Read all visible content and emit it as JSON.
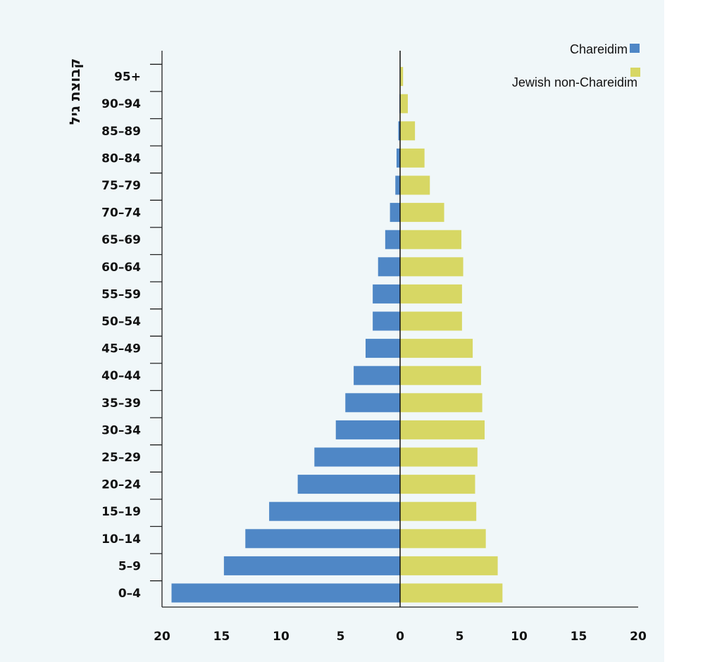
{
  "chart_data": {
    "type": "bar",
    "orientation": "horizontal-population-pyramid",
    "ylabel": "קבוצת גיל",
    "categories": [
      "0–4",
      "5–9",
      "10–14",
      "15–19",
      "20–24",
      "25–29",
      "30–34",
      "35–39",
      "40–44",
      "45–49",
      "50–54",
      "55–59",
      "60–64",
      "65–69",
      "70–74",
      "75–79",
      "80–84",
      "85–89",
      "90–94",
      "95+"
    ],
    "series": [
      {
        "name": "Chareidim",
        "color": "#4f87c6",
        "side": "left",
        "values": [
          19.2,
          14.8,
          13.0,
          11.0,
          8.6,
          7.2,
          5.4,
          4.6,
          3.9,
          2.9,
          2.3,
          2.3,
          1.85,
          1.25,
          0.85,
          0.4,
          0.3,
          0.15,
          0.05,
          0.0
        ]
      },
      {
        "name": "Jewish non-Chareidim",
        "color": "#d7d764",
        "side": "right",
        "values": [
          8.6,
          8.2,
          7.2,
          6.4,
          6.3,
          6.5,
          7.1,
          6.9,
          6.8,
          6.1,
          5.2,
          5.2,
          5.3,
          5.15,
          3.7,
          2.5,
          2.05,
          1.25,
          0.65,
          0.25
        ]
      }
    ],
    "xlim": [
      -20,
      20
    ],
    "xticks": [
      -20,
      -15,
      -10,
      -5,
      0,
      5,
      10,
      15,
      20
    ],
    "xtick_labels": [
      "20",
      "15",
      "10",
      "5",
      "0",
      "5",
      "10",
      "15",
      "20"
    ],
    "legend_position": "top-right"
  }
}
